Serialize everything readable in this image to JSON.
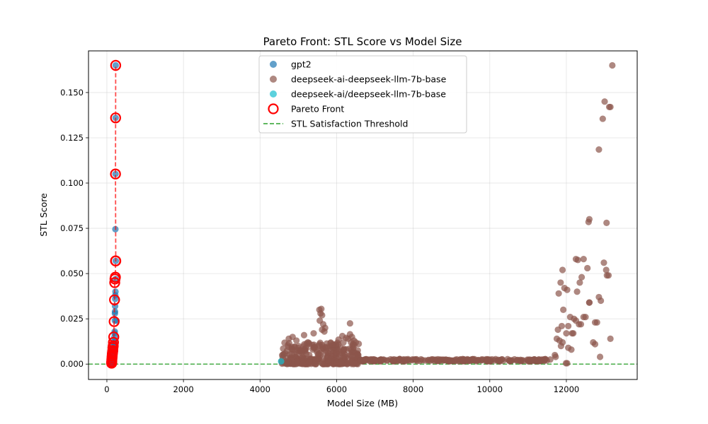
{
  "chart_data": {
    "type": "scatter",
    "title": "Pareto Front: STL Score vs Model Size",
    "xlabel": "Model Size (MB)",
    "ylabel": "STL Score",
    "xlim": [
      -480,
      13850
    ],
    "ylim": [
      -0.0085,
      0.173
    ],
    "xticks": [
      0,
      2000,
      4000,
      6000,
      8000,
      10000,
      12000
    ],
    "xtick_labels": [
      "0",
      "2000",
      "4000",
      "6000",
      "8000",
      "10000",
      "12000"
    ],
    "yticks": [
      0,
      0.025,
      0.05,
      0.075,
      0.1,
      0.125,
      0.15
    ],
    "ytick_labels": [
      "0.000",
      "0.025",
      "0.050",
      "0.075",
      "0.100",
      "0.125",
      "0.150"
    ],
    "grid": true,
    "legend_position": "top-center",
    "series": [
      {
        "name": "gpt2",
        "kind": "scatter",
        "color": "#1f77b4",
        "x": [
          230,
          228,
          225,
          222,
          232,
          226,
          224,
          220,
          218,
          215,
          212,
          210,
          208,
          205,
          200,
          198,
          195,
          190,
          185,
          180,
          176,
          172,
          168,
          165,
          160,
          158,
          155,
          150,
          148,
          145,
          142,
          140,
          138,
          136,
          134,
          132,
          130,
          128,
          126,
          124,
          250
        ],
        "y": [
          0.165,
          0.136,
          0.105,
          0.0745,
          0.057,
          0.047,
          0.04,
          0.038,
          0.036,
          0.032,
          0.029,
          0.028,
          0.024,
          0.018,
          0.017,
          0.015,
          0.013,
          0.012,
          0.011,
          0.01,
          0.009,
          0.008,
          0.0075,
          0.007,
          0.0065,
          0.006,
          0.0055,
          0.005,
          0.0045,
          0.004,
          0.0035,
          0.003,
          0.0025,
          0.002,
          0.0018,
          0.0015,
          0.0012,
          0.001,
          0.0008,
          0.0005,
          0.024
        ]
      },
      {
        "name": "deepseek-ai-deepseek-llm-7b-base",
        "kind": "scatter",
        "color": "#8c564b",
        "x": [
          13200,
          13120,
          13150,
          12850,
          12950,
          13000,
          13050,
          12580,
          12600,
          12550,
          12450,
          13040,
          12250,
          12300,
          12980,
          12400,
          12350,
          13060,
          13100,
          11900,
          11950,
          11850,
          11800,
          12020,
          12280,
          12600,
          12850,
          12900,
          12800,
          11920,
          12100,
          12200,
          12380,
          12500,
          11880,
          11780,
          12050,
          12150,
          11750,
          11860,
          12000,
          12700,
          12750,
          11820,
          11700,
          11720,
          11900,
          12050,
          12130,
          13150,
          12880,
          12750,
          12450,
          12180,
          12330,
          12600,
          12250,
          11990,
          12020
        ],
        "y": [
          0.165,
          0.142,
          0.142,
          0.1185,
          0.1355,
          0.145,
          0.078,
          0.0785,
          0.08,
          0.053,
          0.058,
          0.052,
          0.058,
          0.0575,
          0.056,
          0.048,
          0.045,
          0.049,
          0.049,
          0.052,
          0.042,
          0.045,
          0.039,
          0.041,
          0.04,
          0.034,
          0.037,
          0.035,
          0.023,
          0.03,
          0.026,
          0.025,
          0.022,
          0.026,
          0.021,
          0.019,
          0.021,
          0.017,
          0.014,
          0.01,
          0.017,
          0.012,
          0.023,
          0.013,
          0.005,
          0.004,
          0.012,
          0.009,
          0.008,
          0.014,
          0.004,
          0.011,
          0.026,
          0.017,
          0.022,
          0.034,
          0.024,
          0.0005,
          0.0005
        ],
        "clusters": [
          {
            "x_range": [
              4550,
              6600
            ],
            "y_range": [
              0.0,
              0.012
            ],
            "count": 320
          },
          {
            "x_range": [
              6600,
              11600
            ],
            "y_range": [
              0.0015,
              0.0028
            ],
            "count": 260
          }
        ],
        "extra_x": [
          5550,
          5600,
          5580,
          5620,
          5650,
          5560,
          5700,
          5620,
          5680,
          6350,
          6250,
          6300,
          6400,
          6450,
          6500,
          6350,
          4750,
          4850,
          5150,
          5400,
          4950,
          5250,
          5900,
          6050,
          6150
        ],
        "extra_y": [
          0.03,
          0.0305,
          0.028,
          0.027,
          0.022,
          0.024,
          0.02,
          0.019,
          0.018,
          0.0225,
          0.0145,
          0.014,
          0.015,
          0.013,
          0.012,
          0.0165,
          0.014,
          0.015,
          0.016,
          0.017,
          0.013,
          0.012,
          0.011,
          0.0135,
          0.0155
        ]
      },
      {
        "name": "deepseek-ai/deepseek-llm-7b-base",
        "kind": "scatter",
        "color": "#17becf",
        "x": [
          4550
        ],
        "y": [
          0.0015
        ]
      },
      {
        "name": "Pareto Front",
        "kind": "front",
        "color": "#ff0000",
        "x": [
          124,
          126,
          128,
          130,
          134,
          138,
          142,
          148,
          155,
          158,
          165,
          172,
          180,
          190,
          200,
          205,
          212,
          222,
          226,
          232,
          225,
          228,
          230
        ],
        "y": [
          0.0005,
          0.001,
          0.0015,
          0.0025,
          0.0035,
          0.0045,
          0.0055,
          0.0065,
          0.0075,
          0.009,
          0.01,
          0.012,
          0.015,
          0.0235,
          0.0355,
          0.045,
          0.047,
          0.048,
          0.057,
          0.057,
          0.105,
          0.136,
          0.165
        ]
      },
      {
        "name": "STL Satisfaction Threshold",
        "kind": "hline",
        "color": "#2ca02c",
        "y": 0.0
      }
    ]
  }
}
